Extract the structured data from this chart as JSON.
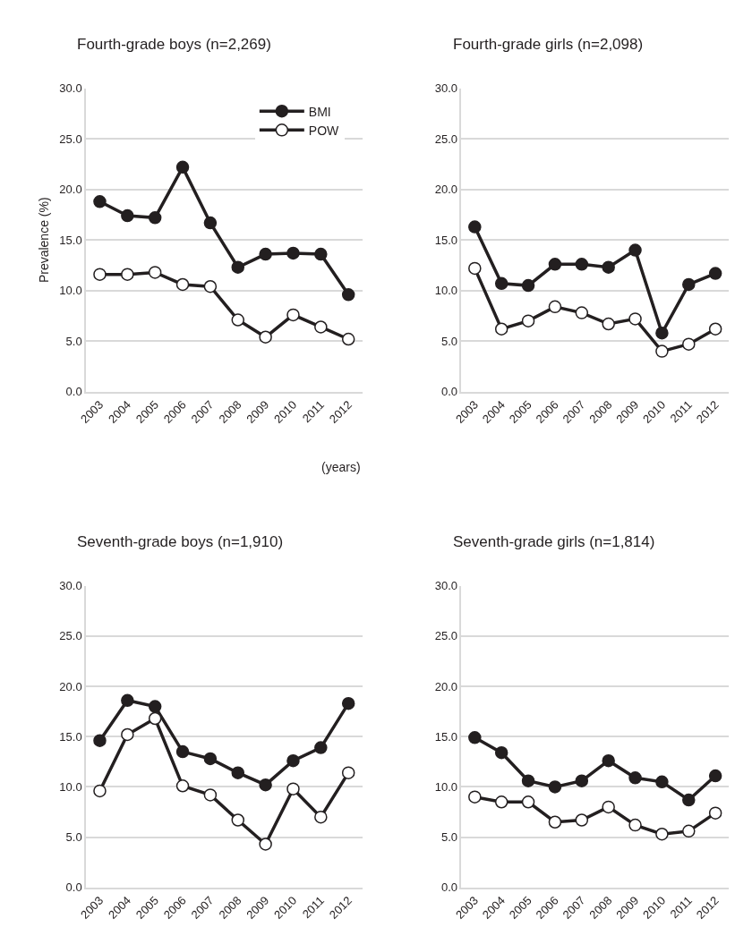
{
  "chart_data": [
    {
      "type": "line",
      "title": "Fourth-grade boys (n=2,269)",
      "xlabel": "(years)",
      "ylabel": "Prevalence (%)",
      "categories": [
        "2003",
        "2004",
        "2005",
        "2006",
        "2007",
        "2008",
        "2009",
        "2010",
        "2011",
        "2012"
      ],
      "ylim": [
        0,
        30
      ],
      "yticks": [
        {
          "value": 0,
          "label": "0.0"
        },
        {
          "value": 5,
          "label": "5.0"
        },
        {
          "value": 10,
          "label": "10.0"
        },
        {
          "value": 15,
          "label": "15.0"
        },
        {
          "value": 20,
          "label": "20.0"
        },
        {
          "value": 25,
          "label": "25.0"
        },
        {
          "value": 30,
          "label": "30.0"
        }
      ],
      "grid": "y",
      "legend": "top right",
      "line_style": "solid",
      "series": [
        {
          "name": "BMI",
          "color": "#231f20",
          "marker": "circle",
          "values": [
            18.8,
            17.4,
            17.2,
            22.2,
            16.7,
            12.3,
            13.6,
            13.7,
            13.6,
            9.6
          ]
        },
        {
          "name": "POW",
          "color": "#231f20",
          "marker": "circle-open",
          "values": [
            11.6,
            11.6,
            11.8,
            10.6,
            10.4,
            7.1,
            5.4,
            7.6,
            6.4,
            5.2
          ]
        }
      ]
    },
    {
      "type": "line",
      "title": "Fourth-grade girls (n=2,098)",
      "categories": [
        "2003",
        "2004",
        "2005",
        "2006",
        "2007",
        "2008",
        "2009",
        "2010",
        "2011",
        "2012"
      ],
      "ylim": [
        0,
        30
      ],
      "yticks": [
        {
          "value": 0,
          "label": "0.0"
        },
        {
          "value": 5,
          "label": "5.0"
        },
        {
          "value": 10,
          "label": "10.0"
        },
        {
          "value": 15,
          "label": "15.0"
        },
        {
          "value": 20,
          "label": "20.0"
        },
        {
          "value": 25,
          "label": "25.0"
        },
        {
          "value": 30,
          "label": "30.0"
        }
      ],
      "grid": "y",
      "line_style": "solid",
      "series": [
        {
          "color": "#231f20",
          "marker": "circle",
          "values": [
            16.3,
            10.7,
            10.5,
            12.6,
            12.6,
            12.3,
            14.0,
            5.8,
            10.6,
            11.7
          ]
        },
        {
          "color": "#231f20",
          "marker": "circle-open",
          "values": [
            12.2,
            6.2,
            7.0,
            8.4,
            7.8,
            6.7,
            7.2,
            4.0,
            4.7,
            6.2
          ]
        }
      ]
    },
    {
      "type": "line",
      "title": "Seventh-grade boys (n=1,910)",
      "categories": [
        "2003",
        "2004",
        "2005",
        "2006",
        "2007",
        "2008",
        "2009",
        "2010",
        "2011",
        "2012"
      ],
      "ylim": [
        0,
        30
      ],
      "yticks": [
        {
          "value": 0,
          "label": "0.0"
        },
        {
          "value": 5,
          "label": "5.0"
        },
        {
          "value": 10,
          "label": "10.0"
        },
        {
          "value": 15,
          "label": "15.0"
        },
        {
          "value": 20,
          "label": "20.0"
        },
        {
          "value": 25,
          "label": "25.0"
        },
        {
          "value": 30,
          "label": "30.0"
        }
      ],
      "grid": "y",
      "line_style": "solid",
      "series": [
        {
          "color": "#231f20",
          "marker": "circle",
          "values": [
            14.6,
            18.6,
            18.0,
            13.5,
            12.8,
            11.4,
            10.2,
            12.6,
            13.9,
            18.3
          ]
        },
        {
          "color": "#231f20",
          "marker": "circle-open",
          "values": [
            9.6,
            15.2,
            16.8,
            10.1,
            9.2,
            6.7,
            4.3,
            9.8,
            7.0,
            11.4
          ]
        }
      ]
    },
    {
      "type": "line",
      "title": "Seventh-grade girls (n=1,814)",
      "categories": [
        "2003",
        "2004",
        "2005",
        "2006",
        "2007",
        "2008",
        "2009",
        "2010",
        "2011",
        "2012"
      ],
      "ylim": [
        0,
        30
      ],
      "yticks": [
        {
          "value": 0,
          "label": "0.0"
        },
        {
          "value": 5,
          "label": "5.0"
        },
        {
          "value": 10,
          "label": "10.0"
        },
        {
          "value": 15,
          "label": "15.0"
        },
        {
          "value": 20,
          "label": "20.0"
        },
        {
          "value": 25,
          "label": "25.0"
        },
        {
          "value": 30,
          "label": "30.0"
        }
      ],
      "grid": "y",
      "line_style": "solid",
      "series": [
        {
          "color": "#231f20",
          "marker": "circle",
          "values": [
            14.9,
            13.4,
            10.6,
            10.0,
            10.6,
            12.6,
            10.9,
            10.5,
            8.7,
            11.1
          ]
        },
        {
          "color": "#231f20",
          "marker": "circle-open",
          "values": [
            9.0,
            8.5,
            8.5,
            6.5,
            6.7,
            8.0,
            6.2,
            5.3,
            5.6,
            7.4
          ]
        }
      ]
    }
  ]
}
